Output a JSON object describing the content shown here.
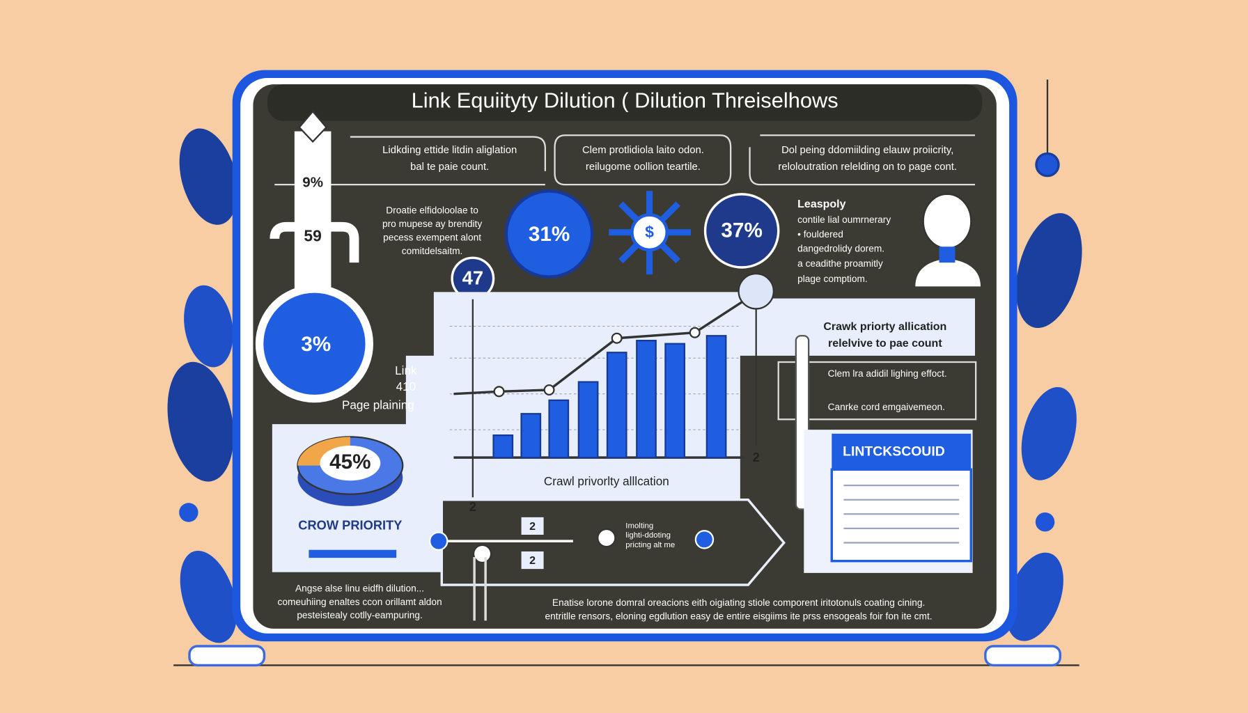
{
  "title": "Link Equiityty Dilution ( Dilution Threiselhows",
  "thermometer": {
    "top": "9%",
    "middle": "59",
    "bulb": "3%"
  },
  "header_boxes": [
    {
      "line1": "Lidkding ettide litdin aliglation",
      "line2": "bal te paie count."
    },
    {
      "line1": "Clem protlidiola laito odon.",
      "line2": "reilugome oollion teartile."
    },
    {
      "line1": "Dol peing ddomiilding elauw proiicrity,",
      "line2": "reloloutration relelding on to page cont."
    }
  ],
  "intro_paragraph": [
    "Droatie elfidoloolae to",
    "pro mupese ay brendity",
    "pecess exempent alont",
    "comitdelsaitm."
  ],
  "badges": {
    "left": "31%",
    "center": "$",
    "right": "37%",
    "marker": "47"
  },
  "side_note": {
    "title": "Leaspoly",
    "lines": [
      "contile lial oumrnerary",
      "• fouldered",
      "dangedrolidy dorem.",
      "a ceadithe proamitly",
      "plage comptiom."
    ]
  },
  "link_label": {
    "line1": "Link",
    "line2": "410",
    "line3": "Page plaining"
  },
  "pie": {
    "label": "45%",
    "caption": "CROW PRIORITY"
  },
  "bar_chart": {
    "caption": "Crawl privorlty alllcation",
    "values": [
      28,
      55,
      72,
      95,
      132,
      147,
      143,
      153
    ],
    "ylim": [
      0,
      200
    ]
  },
  "callout": {
    "line1": "Crawk priorty allication",
    "line2": "relelvive to pae count"
  },
  "bullets": [
    "Clem lra adidil lighing effoct.",
    "Canrke cord emgaivemeon."
  ],
  "document_title": "LINTCKSCOUID",
  "step_markers": [
    "2",
    "2",
    "2",
    "2"
  ],
  "flow_label": [
    "Imolting",
    "lighti-ddoting",
    "pricting alt me"
  ],
  "footer_left": [
    "Angse alse linu eidfh dilution...",
    "comeuhiing enaltes ccon orillamt aldon",
    "pesteistealy cotlly-eampuring."
  ],
  "footer_main": [
    "Enatise lorone domral oreacions eith oigiating stiole comporent iritotonuls coating cining.",
    "entritlle rensors, eloning egdlution easy de entire eisgiims ite prss ensogeals foir fon ite cmt."
  ]
}
